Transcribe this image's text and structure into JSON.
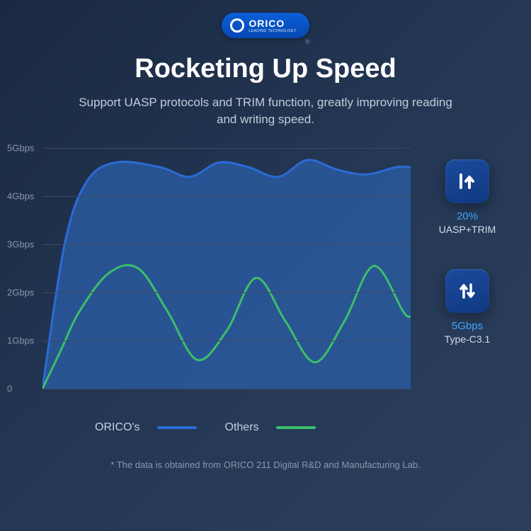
{
  "brand": {
    "name": "ORICO",
    "tagline": "LEADING TECHNOLOGY",
    "registered_mark": "®"
  },
  "headline": "Rocketing Up Speed",
  "subhead": "Support UASP protocols and TRIM function, greatly improving reading and writing speed.",
  "chart": {
    "type": "area",
    "ylabel_unit": "Gbps",
    "ylim": [
      0,
      5
    ],
    "ytick_step": 1,
    "ytick_labels": [
      "0",
      "1Gbps",
      "2Gbps",
      "3Gbps",
      "4Gbps",
      "5Gbps"
    ],
    "grid_color": "#3a4a63",
    "background_color": "transparent",
    "label_color": "#8a97ad",
    "label_fontsize": 13,
    "series": [
      {
        "name": "ORICO's",
        "stroke": "#2b6bd6",
        "fill": "#2b5fa8",
        "fill_opacity": 0.75,
        "line_width": 3,
        "points_x": [
          0,
          0.06,
          0.12,
          0.2,
          0.32,
          0.4,
          0.48,
          0.56,
          0.64,
          0.72,
          0.8,
          0.88,
          0.96,
          1.0
        ],
        "points_y": [
          0,
          3.0,
          4.3,
          4.7,
          4.6,
          4.4,
          4.7,
          4.6,
          4.4,
          4.75,
          4.55,
          4.45,
          4.6,
          4.6
        ]
      },
      {
        "name": "Others",
        "stroke": "#3bbf6a",
        "fill": "none",
        "line_width": 3,
        "points_x": [
          0,
          0.05,
          0.1,
          0.18,
          0.26,
          0.34,
          0.42,
          0.5,
          0.58,
          0.66,
          0.74,
          0.82,
          0.9,
          0.98,
          1.0
        ],
        "points_y": [
          0,
          0.8,
          1.6,
          2.4,
          2.5,
          1.6,
          0.6,
          1.2,
          2.3,
          1.4,
          0.55,
          1.4,
          2.55,
          1.6,
          1.5
        ]
      }
    ]
  },
  "badges": [
    {
      "icon": "speed-up-icon",
      "value": "20%",
      "label": "UASP+TRIM",
      "value_color": "#3fa3ff"
    },
    {
      "icon": "transfer-icon",
      "value": "5Gbps",
      "label": "Type-C3.1",
      "value_color": "#3fa3ff"
    }
  ],
  "legend": [
    {
      "label": "ORICO's",
      "color": "#2b6bd6"
    },
    {
      "label": "Others",
      "color": "#3bbf6a"
    }
  ],
  "footnote": "* The data is obtained from ORICO 211 Digital R&D and Manufacturing Lab."
}
